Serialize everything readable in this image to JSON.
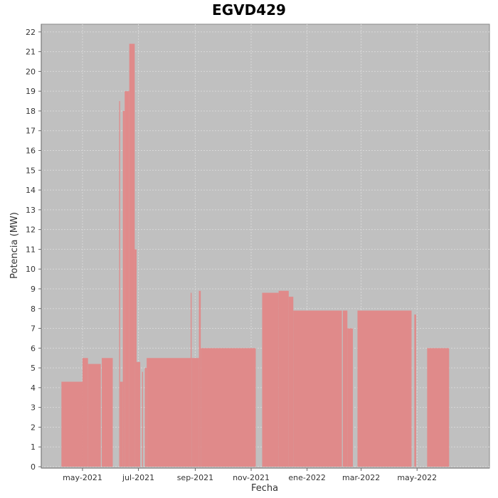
{
  "chart_data": {
    "type": "bar",
    "title": "EGVD429",
    "xlabel": "Fecha",
    "ylabel": "Potencia (MW)",
    "ylim": [
      0,
      22.5
    ],
    "xlim": [
      "2021-03-17",
      "2022-07-19"
    ],
    "yticks": [
      0,
      1,
      2,
      3,
      4,
      5,
      6,
      7,
      8,
      9,
      10,
      11,
      12,
      13,
      14,
      15,
      16,
      17,
      18,
      19,
      20,
      21,
      22
    ],
    "xticks": [
      {
        "date": "2021-05-01",
        "label": "may-2021"
      },
      {
        "date": "2021-07-01",
        "label": "jul-2021"
      },
      {
        "date": "2021-09-01",
        "label": "sep-2021"
      },
      {
        "date": "2021-11-01",
        "label": "nov-2021"
      },
      {
        "date": "2022-01-01",
        "label": "ene-2022"
      },
      {
        "date": "2022-03-01",
        "label": "mar-2022"
      },
      {
        "date": "2022-05-01",
        "label": "may-2022"
      }
    ],
    "grid": true,
    "background_color": "#c0c0c0",
    "bar_color": "#e08a8a",
    "series": [
      {
        "segments": [
          {
            "start": "2021-04-08",
            "end": "2021-05-01",
            "value": 4.3
          },
          {
            "start": "2021-05-01",
            "end": "2021-05-07",
            "value": 5.5
          },
          {
            "start": "2021-05-07",
            "end": "2021-05-21",
            "value": 5.2
          },
          {
            "start": "2021-05-22",
            "end": "2021-06-03",
            "value": 5.5
          },
          {
            "start": "2021-06-10",
            "end": "2021-06-11",
            "value": 18.5
          },
          {
            "start": "2021-06-11",
            "end": "2021-06-14",
            "value": 4.3
          },
          {
            "start": "2021-06-14",
            "end": "2021-06-16",
            "value": 18.0
          },
          {
            "start": "2021-06-16",
            "end": "2021-06-21",
            "value": 19.0
          },
          {
            "start": "2021-06-21",
            "end": "2021-06-27",
            "value": 21.4
          },
          {
            "start": "2021-06-27",
            "end": "2021-06-29",
            "value": 11.0
          },
          {
            "start": "2021-06-29",
            "end": "2021-07-03",
            "value": 5.3
          },
          {
            "start": "2021-07-05",
            "end": "2021-07-06",
            "value": 4.8
          },
          {
            "start": "2021-07-08",
            "end": "2021-07-10",
            "value": 5.0
          },
          {
            "start": "2021-07-10",
            "end": "2021-08-27",
            "value": 5.5
          },
          {
            "start": "2021-08-27",
            "end": "2021-08-28",
            "value": 8.8
          },
          {
            "start": "2021-08-28",
            "end": "2021-09-05",
            "value": 5.5
          },
          {
            "start": "2021-09-05",
            "end": "2021-09-07",
            "value": 8.9
          },
          {
            "start": "2021-09-07",
            "end": "2021-11-06",
            "value": 6.0
          },
          {
            "start": "2021-11-13",
            "end": "2021-12-01",
            "value": 8.8
          },
          {
            "start": "2021-12-01",
            "end": "2021-12-12",
            "value": 8.9
          },
          {
            "start": "2021-12-12",
            "end": "2021-12-17",
            "value": 8.6
          },
          {
            "start": "2021-12-17",
            "end": "2022-02-08",
            "value": 7.9
          },
          {
            "start": "2022-02-09",
            "end": "2022-02-14",
            "value": 7.9
          },
          {
            "start": "2022-02-14",
            "end": "2022-02-20",
            "value": 7.0
          },
          {
            "start": "2022-02-25",
            "end": "2022-04-25",
            "value": 7.9
          },
          {
            "start": "2022-04-28",
            "end": "2022-04-30",
            "value": 7.7
          },
          {
            "start": "2022-05-12",
            "end": "2022-06-05",
            "value": 6.0
          }
        ]
      }
    ]
  }
}
